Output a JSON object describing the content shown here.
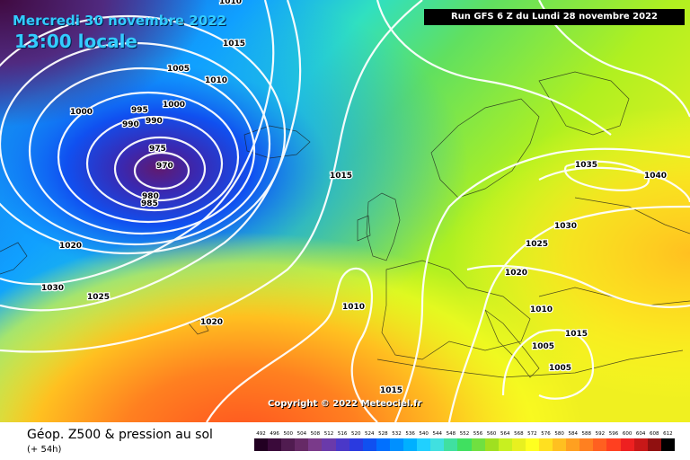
{
  "header": {
    "date": "Mercredi 30 novembre 2022",
    "time": "13:00 locale",
    "run": "Run GFS 6 Z du Lundi 28 novembre 2022"
  },
  "copyright": "Copyright © 2022 Meteociel.fr",
  "footer": {
    "title": "Géop. Z500 & pression au sol",
    "subtitle": "(+ 54h)"
  },
  "scale": {
    "labels": [
      "492",
      "496",
      "500",
      "504",
      "508",
      "512",
      "516",
      "520",
      "524",
      "528",
      "532",
      "536",
      "540",
      "544",
      "548",
      "552",
      "556",
      "560",
      "564",
      "568",
      "572",
      "576",
      "580",
      "584",
      "588",
      "592",
      "596",
      "600",
      "604",
      "608",
      "612"
    ],
    "colors": [
      "#220022",
      "#3a0a3a",
      "#501c50",
      "#662a66",
      "#7a3a8a",
      "#6a3aaa",
      "#4a38c8",
      "#2a3ae0",
      "#1050f0",
      "#0070ff",
      "#0090ff",
      "#00b0ff",
      "#20d0ff",
      "#40e0e0",
      "#40e0a0",
      "#40e060",
      "#70e040",
      "#a0e020",
      "#c8f020",
      "#e8f020",
      "#ffff20",
      "#ffe020",
      "#ffc020",
      "#ffa020",
      "#ff8020",
      "#ff6020",
      "#ff4020",
      "#ee2020",
      "#c81818",
      "#901010",
      "#000000"
    ]
  },
  "isobars": [
    {
      "value": "1010",
      "id": "a"
    },
    {
      "value": "1015",
      "id": "b"
    },
    {
      "value": "1005",
      "id": "c"
    },
    {
      "value": "1010",
      "id": "d"
    },
    {
      "value": "1000",
      "id": "e"
    },
    {
      "value": "995",
      "id": "f"
    },
    {
      "value": "990",
      "id": "g"
    },
    {
      "value": "990",
      "id": "h"
    },
    {
      "value": "1000",
      "id": "i"
    },
    {
      "value": "975",
      "id": "j"
    },
    {
      "value": "970",
      "id": "k"
    },
    {
      "value": "980",
      "id": "l"
    },
    {
      "value": "985",
      "id": "m"
    },
    {
      "value": "1015",
      "id": "n"
    },
    {
      "value": "1020",
      "id": "o"
    },
    {
      "value": "1030",
      "id": "p"
    },
    {
      "value": "1025",
      "id": "q"
    },
    {
      "value": "1020",
      "id": "r"
    },
    {
      "value": "1010",
      "id": "s"
    },
    {
      "value": "1035",
      "id": "t"
    },
    {
      "value": "1040",
      "id": "u"
    },
    {
      "value": "1030",
      "id": "v"
    },
    {
      "value": "1025",
      "id": "w"
    },
    {
      "value": "1020",
      "id": "x"
    },
    {
      "value": "1010",
      "id": "y"
    },
    {
      "value": "1005",
      "id": "z"
    },
    {
      "value": "1015",
      "id": "aa"
    },
    {
      "value": "1005",
      "id": "ab"
    },
    {
      "value": "1015",
      "id": "ac"
    }
  ]
}
